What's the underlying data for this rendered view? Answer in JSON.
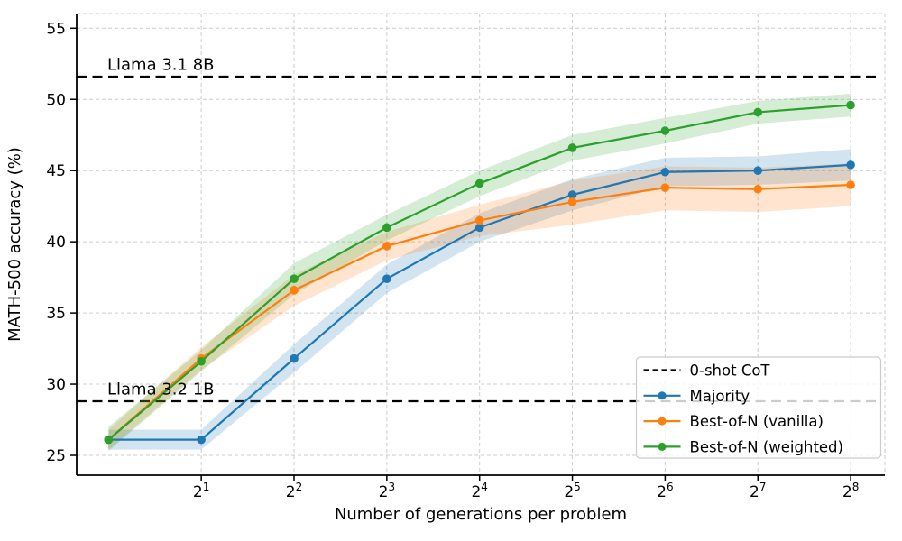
{
  "chart_data": {
    "type": "line",
    "title": "",
    "xlabel": "Number of generations per problem",
    "ylabel": "MATH-500 accuracy (%)",
    "x_scale": "log2",
    "grid": true,
    "x": [
      1,
      2,
      4,
      8,
      16,
      32,
      64,
      128,
      256
    ],
    "x_tick_base": "2",
    "x_tick_exponents": [
      1,
      2,
      3,
      4,
      5,
      6,
      7,
      8
    ],
    "y_ticks": [
      25,
      30,
      35,
      40,
      45,
      50,
      55
    ],
    "ylim": [
      23.6,
      56.0
    ],
    "series": [
      {
        "name": "Majority",
        "color": "#1f77b4",
        "values": [
          26.1,
          26.1,
          31.8,
          37.4,
          41.0,
          43.3,
          44.9,
          45.0,
          45.4
        ],
        "band_lower": [
          25.4,
          25.4,
          30.8,
          36.4,
          40.0,
          42.2,
          43.9,
          44.0,
          44.3
        ],
        "band_upper": [
          26.8,
          26.8,
          32.8,
          38.4,
          42.0,
          44.4,
          45.9,
          46.0,
          46.5
        ]
      },
      {
        "name": "Best-of-N (vanilla)",
        "color": "#ff7f0e",
        "values": [
          26.1,
          31.8,
          36.6,
          39.7,
          41.5,
          42.8,
          43.8,
          43.7,
          44.0
        ],
        "band_lower": [
          25.4,
          31.0,
          35.5,
          38.7,
          40.4,
          41.2,
          42.2,
          42.1,
          42.5
        ],
        "band_upper": [
          26.8,
          32.6,
          37.7,
          40.7,
          42.6,
          44.3,
          45.3,
          45.2,
          45.5
        ]
      },
      {
        "name": "Best-of-N (weighted)",
        "color": "#2ca02c",
        "values": [
          26.1,
          31.6,
          37.4,
          41.0,
          44.1,
          46.6,
          47.8,
          49.1,
          49.6
        ],
        "band_lower": [
          25.3,
          30.9,
          36.3,
          40.1,
          43.2,
          45.7,
          46.9,
          48.3,
          48.8
        ],
        "band_upper": [
          27.0,
          32.4,
          38.5,
          41.9,
          45.0,
          47.5,
          48.7,
          49.9,
          50.4
        ]
      }
    ],
    "reference_lines": [
      {
        "label": "Llama 3.1 8B",
        "value": 51.6,
        "color": "#000000",
        "style": "dashed"
      },
      {
        "label": "Llama 3.2 1B",
        "value": 28.8,
        "color": "#000000",
        "style": "dashed"
      }
    ],
    "legend": {
      "position": "lower-right",
      "entries": [
        {
          "label": "0-shot CoT",
          "color": "#000000",
          "dash": true,
          "marker": false
        },
        {
          "label": "Majority",
          "color": "#1f77b4",
          "dash": false,
          "marker": true
        },
        {
          "label": "Best-of-N (vanilla)",
          "color": "#ff7f0e",
          "dash": false,
          "marker": true
        },
        {
          "label": "Best-of-N (weighted)",
          "color": "#2ca02c",
          "dash": false,
          "marker": true
        }
      ]
    },
    "colors": {
      "background": "#ffffff",
      "grid": "#cccccc",
      "axis": "#000000",
      "band_opacity": 0.2
    }
  }
}
